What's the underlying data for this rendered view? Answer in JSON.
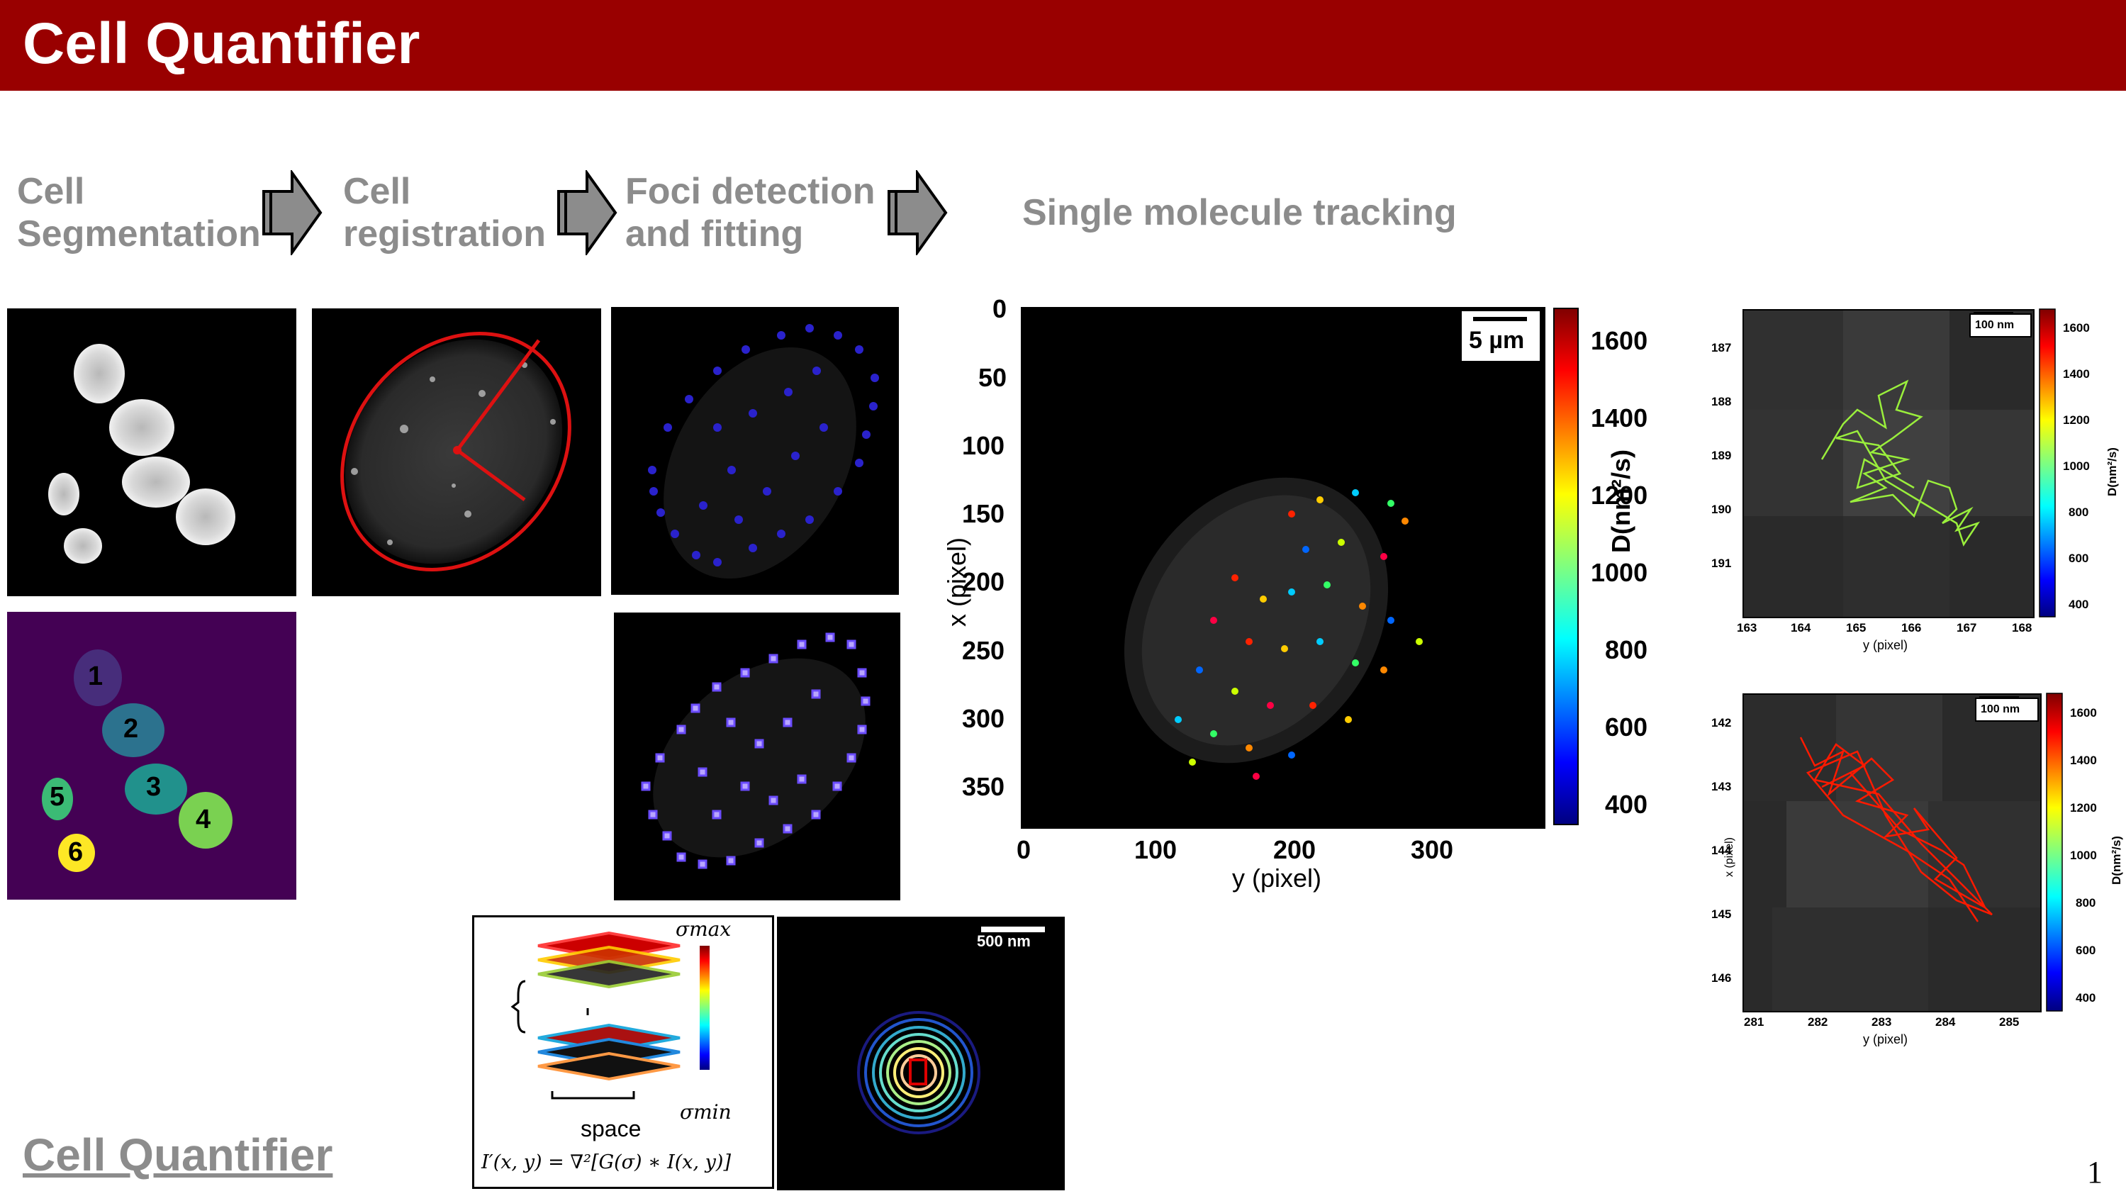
{
  "header": {
    "title": "Cell Quantifier"
  },
  "pipeline": {
    "steps": [
      {
        "line1": "Cell",
        "line2": "Segmentation"
      },
      {
        "line1": "Cell",
        "line2": "registration"
      },
      {
        "line1": "Foci detection",
        "line2": "and fitting"
      },
      {
        "line1": "Single molecule tracking",
        "line2": ""
      }
    ]
  },
  "segmentation": {
    "labels": [
      "1",
      "2",
      "3",
      "4",
      "5",
      "6"
    ],
    "colors": [
      "#472d7b",
      "#2c728e",
      "#21918c",
      "#7ad151",
      "#3bbb75",
      "#fde725"
    ],
    "background": "#440154"
  },
  "filter_diagram": {
    "sigma_max": "σmax",
    "sigma_min": "σmin",
    "axis_label": "space",
    "formula": "I′(x, y) = ∇²[G(σ) ∗ I(x, y)]"
  },
  "psf_panel": {
    "scale_bar": "500 nm"
  },
  "main_plot": {
    "scale_bar": "5 µm",
    "xlabel": "y (pixel)",
    "ylabel": "x (pixel)",
    "x_ticks": [
      "0",
      "100",
      "200",
      "300"
    ],
    "y_ticks": [
      "0",
      "50",
      "100",
      "150",
      "200",
      "250",
      "300",
      "350"
    ],
    "colorbar_label": "D(nm²/s)",
    "colorbar_ticks": [
      "1600",
      "1400",
      "1200",
      "1000",
      "800",
      "600",
      "400"
    ]
  },
  "track_plot_1": {
    "scale_bar": "100 nm",
    "xlabel": "y (pixel)",
    "x_ticks": [
      "163",
      "164",
      "165",
      "166",
      "167",
      "168"
    ],
    "y_ticks": [
      "187",
      "188",
      "189",
      "190",
      "191"
    ],
    "colorbar_label": "D(nm²/s)",
    "colorbar_ticks": [
      "1600",
      "1400",
      "1200",
      "1000",
      "800",
      "600",
      "400"
    ],
    "track_color": "#9aef3c"
  },
  "track_plot_2": {
    "scale_bar": "100 nm",
    "xlabel": "y (pixel)",
    "ylabel": "x (pixel)",
    "x_ticks": [
      "281",
      "282",
      "283",
      "284",
      "285"
    ],
    "y_ticks": [
      "142",
      "143",
      "144",
      "145",
      "146"
    ],
    "colorbar_label": "D(nm²/s)",
    "colorbar_ticks": [
      "1600",
      "1400",
      "1200",
      "1000",
      "800",
      "600",
      "400"
    ],
    "track_color": "#ff1a00"
  },
  "footer": {
    "link": "Cell Quantifier",
    "page_number": "1"
  }
}
